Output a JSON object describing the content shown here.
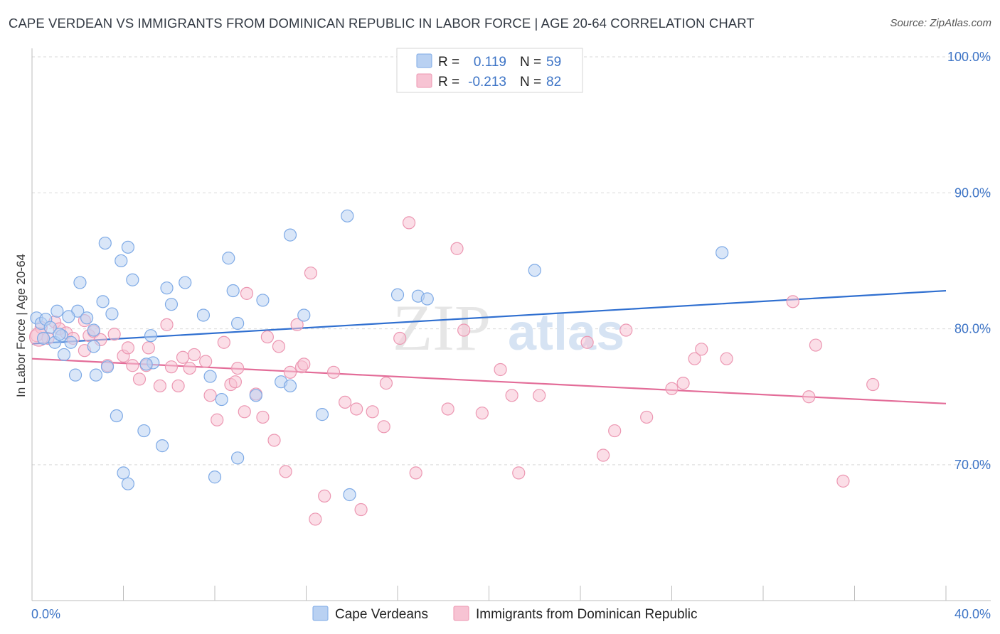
{
  "title": "CAPE VERDEAN VS IMMIGRANTS FROM DOMINICAN REPUBLIC IN LABOR FORCE | AGE 20-64 CORRELATION CHART",
  "source": "Source: ZipAtlas.com",
  "watermark": {
    "zip": "ZIP",
    "atlas": "atlas"
  },
  "colors": {
    "blue_fill": "#b9d1f2",
    "blue_stroke": "#7eaae6",
    "blue_line": "#2f6fd0",
    "pink_fill": "#f7c3d3",
    "pink_stroke": "#ec97b2",
    "pink_line": "#e36c98",
    "axis_text": "#3d74c6",
    "grid": "#d9d9d9"
  },
  "legend": {
    "rows": [
      {
        "r_label": "R =",
        "r_value": "0.119",
        "n_label": "N =",
        "n_value": "59",
        "color": "blue"
      },
      {
        "r_label": "R =",
        "r_value": "-0.213",
        "n_label": "N =",
        "n_value": "82",
        "color": "pink"
      }
    ]
  },
  "chart_data": {
    "type": "scatter",
    "title": "CAPE VERDEAN VS IMMIGRANTS FROM DOMINICAN REPUBLIC IN LABOR FORCE | AGE 20-64 CORRELATION CHART",
    "xlabel": "",
    "ylabel": "In Labor Force | Age 20-64",
    "xlim": [
      0,
      40
    ],
    "ylim": [
      60,
      101.5
    ],
    "x_tick_labels": [
      "0.0%",
      "40.0%"
    ],
    "y_ticks": [
      70,
      80,
      90,
      100
    ],
    "y_tick_labels": [
      "70.0%",
      "80.0%",
      "90.0%",
      "100.0%"
    ],
    "grid": true,
    "legend_position": "top-center",
    "series": [
      {
        "name": "Cape Verdeans",
        "color": "blue",
        "trend": {
          "x": [
            0,
            40
          ],
          "y": [
            78.9,
            82.8
          ]
        },
        "points": [
          [
            0.2,
            80.8
          ],
          [
            0.4,
            80.4
          ],
          [
            0.6,
            80.7
          ],
          [
            0.8,
            80.1
          ],
          [
            1.0,
            79.0
          ],
          [
            1.1,
            81.3
          ],
          [
            1.3,
            79.5
          ],
          [
            1.4,
            78.1
          ],
          [
            1.7,
            79.0
          ],
          [
            1.9,
            76.6
          ],
          [
            2.0,
            81.3
          ],
          [
            2.1,
            83.4
          ],
          [
            2.4,
            80.8
          ],
          [
            2.7,
            79.9
          ],
          [
            2.8,
            76.6
          ],
          [
            3.1,
            82.0
          ],
          [
            3.2,
            86.3
          ],
          [
            3.5,
            81.1
          ],
          [
            3.7,
            73.6
          ],
          [
            3.9,
            85.0
          ],
          [
            4.2,
            86.0
          ],
          [
            4.4,
            83.6
          ],
          [
            4.9,
            72.5
          ],
          [
            5.2,
            79.5
          ],
          [
            5.7,
            71.4
          ],
          [
            5.9,
            83.0
          ],
          [
            6.1,
            81.8
          ],
          [
            6.7,
            83.4
          ],
          [
            7.5,
            81.0
          ],
          [
            7.8,
            76.5
          ],
          [
            8.0,
            69.1
          ],
          [
            8.3,
            74.8
          ],
          [
            8.6,
            85.2
          ],
          [
            8.8,
            82.8
          ],
          [
            9.0,
            70.5
          ],
          [
            9.8,
            75.1
          ],
          [
            10.1,
            82.1
          ],
          [
            10.9,
            76.1
          ],
          [
            11.3,
            86.9
          ],
          [
            11.3,
            75.8
          ],
          [
            11.9,
            81.0
          ],
          [
            12.7,
            73.7
          ],
          [
            13.8,
            88.3
          ],
          [
            13.9,
            67.8
          ],
          [
            16.0,
            82.5
          ],
          [
            16.9,
            82.4
          ],
          [
            17.3,
            82.2
          ],
          [
            22.0,
            84.3
          ],
          [
            30.2,
            85.6
          ],
          [
            2.7,
            78.7
          ],
          [
            1.6,
            80.9
          ],
          [
            5.3,
            77.5
          ],
          [
            4.0,
            69.4
          ],
          [
            4.2,
            68.6
          ],
          [
            3.3,
            77.2
          ],
          [
            0.5,
            79.3
          ],
          [
            9.0,
            80.4
          ],
          [
            1.2,
            79.6
          ],
          [
            5.0,
            77.4
          ]
        ]
      },
      {
        "name": "Immigrants from Dominican Republic",
        "color": "pink",
        "trend": {
          "x": [
            0,
            40
          ],
          "y": [
            77.8,
            74.5
          ]
        },
        "points": [
          [
            0.2,
            79.5
          ],
          [
            0.4,
            80.1
          ],
          [
            0.7,
            79.3
          ],
          [
            1.0,
            80.5
          ],
          [
            1.2,
            80.0
          ],
          [
            1.5,
            79.7
          ],
          [
            1.8,
            79.3
          ],
          [
            2.3,
            78.4
          ],
          [
            2.5,
            79.5
          ],
          [
            2.7,
            79.8
          ],
          [
            3.0,
            79.2
          ],
          [
            3.3,
            77.3
          ],
          [
            3.6,
            79.6
          ],
          [
            4.0,
            78.0
          ],
          [
            4.2,
            78.6
          ],
          [
            4.4,
            77.3
          ],
          [
            4.7,
            76.3
          ],
          [
            5.0,
            77.3
          ],
          [
            5.1,
            78.6
          ],
          [
            5.6,
            75.8
          ],
          [
            5.9,
            80.3
          ],
          [
            6.1,
            77.2
          ],
          [
            6.4,
            75.8
          ],
          [
            6.6,
            77.9
          ],
          [
            6.9,
            77.1
          ],
          [
            7.1,
            78.1
          ],
          [
            7.6,
            77.6
          ],
          [
            7.8,
            75.1
          ],
          [
            8.1,
            73.3
          ],
          [
            8.4,
            79.0
          ],
          [
            8.7,
            75.9
          ],
          [
            8.9,
            76.1
          ],
          [
            9.0,
            77.1
          ],
          [
            9.3,
            73.9
          ],
          [
            9.4,
            82.6
          ],
          [
            9.8,
            75.2
          ],
          [
            10.1,
            73.5
          ],
          [
            10.3,
            79.4
          ],
          [
            10.6,
            71.8
          ],
          [
            10.8,
            78.7
          ],
          [
            11.1,
            69.5
          ],
          [
            11.3,
            76.8
          ],
          [
            11.6,
            80.3
          ],
          [
            11.8,
            77.2
          ],
          [
            12.2,
            84.1
          ],
          [
            12.4,
            66.0
          ],
          [
            12.8,
            67.7
          ],
          [
            13.2,
            76.8
          ],
          [
            13.7,
            74.6
          ],
          [
            14.2,
            74.1
          ],
          [
            14.4,
            66.7
          ],
          [
            14.9,
            73.9
          ],
          [
            15.4,
            72.8
          ],
          [
            15.5,
            76.0
          ],
          [
            16.1,
            79.3
          ],
          [
            16.5,
            87.8
          ],
          [
            16.8,
            69.4
          ],
          [
            18.2,
            74.1
          ],
          [
            18.6,
            85.9
          ],
          [
            18.9,
            79.9
          ],
          [
            19.7,
            73.8
          ],
          [
            20.5,
            77.0
          ],
          [
            21.0,
            75.1
          ],
          [
            21.3,
            69.4
          ],
          [
            22.2,
            75.1
          ],
          [
            24.3,
            79.0
          ],
          [
            25.0,
            70.7
          ],
          [
            25.5,
            72.5
          ],
          [
            26.0,
            79.9
          ],
          [
            26.9,
            73.5
          ],
          [
            28.0,
            75.6
          ],
          [
            28.5,
            76.0
          ],
          [
            29.0,
            77.8
          ],
          [
            29.3,
            78.5
          ],
          [
            30.4,
            77.8
          ],
          [
            33.3,
            82.0
          ],
          [
            34.0,
            75.0
          ],
          [
            34.3,
            78.8
          ],
          [
            35.5,
            68.8
          ],
          [
            36.8,
            75.9
          ],
          [
            11.9,
            77.4
          ],
          [
            2.3,
            80.6
          ]
        ]
      }
    ]
  },
  "bottom_legend": [
    {
      "label": "Cape Verdeans",
      "color": "blue"
    },
    {
      "label": "Immigrants from Dominican Republic",
      "color": "pink"
    }
  ]
}
